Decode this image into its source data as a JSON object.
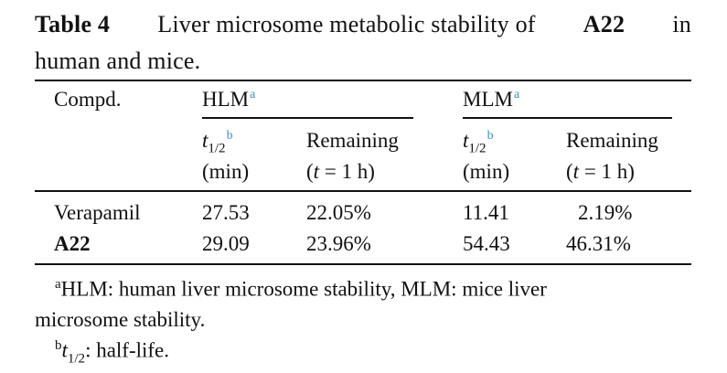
{
  "caption": {
    "label": "Table 4",
    "text_before": "Liver microsome metabolic stability of",
    "compound": "A22",
    "text_after_line1": "in",
    "text_line2": "human and mice."
  },
  "table": {
    "col_compd": "Compd.",
    "group_hlm": "HLM",
    "group_mlm": "MLM",
    "group_note": "a",
    "sub_t_symbol": "t",
    "sub_t_subscript": "1/2",
    "sub_t_note": "b",
    "sub_t_unit": "(min)",
    "sub_remaining": "Remaining",
    "sub_remaining_cond_var": "t",
    "sub_remaining_cond_rest": "= 1 h)",
    "sub_remaining_open": "(",
    "rows": [
      {
        "compd": "Verapamil",
        "hlm_t": "27.53",
        "hlm_rem": "22.05%",
        "mlm_t": "11.41",
        "mlm_rem": "2.19%"
      },
      {
        "compd": "A22",
        "hlm_t": "29.09",
        "hlm_rem": "23.96%",
        "mlm_t": "54.43",
        "mlm_rem": "46.31%"
      }
    ]
  },
  "footnotes": {
    "a_mark": "a",
    "a_line1": "HLM: human liver microsome stability, MLM: mice liver",
    "a_line2": "microsome stability.",
    "b_mark": "b",
    "b_symbol": "t",
    "b_subscript": "1/2",
    "b_text": ": half-life."
  }
}
